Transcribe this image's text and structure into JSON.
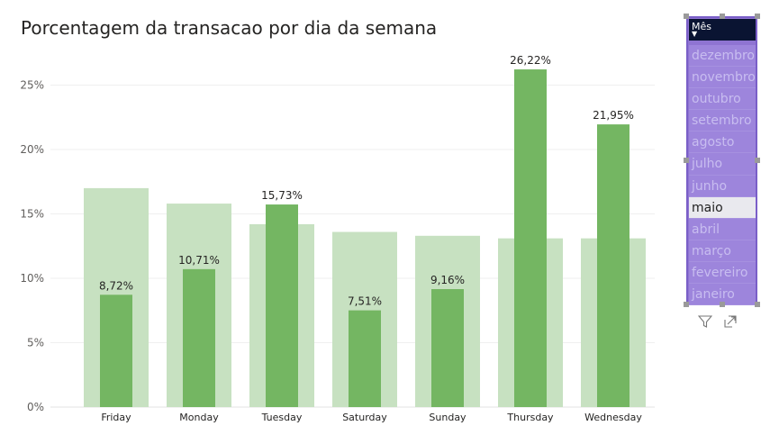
{
  "title": "Porcentagem da transacao por dia da semana",
  "chart_data": {
    "type": "bar",
    "title": "Porcentagem da transacao por dia da semana",
    "categories": [
      "Friday",
      "Monday",
      "Tuesday",
      "Saturday",
      "Sunday",
      "Thursday",
      "Wednesday"
    ],
    "series": [
      {
        "values": [
          17.0,
          15.8,
          14.2,
          13.6,
          13.3,
          13.1,
          13.1
        ],
        "color": "#c7e1c1"
      },
      {
        "values": [
          8.72,
          10.71,
          15.73,
          7.51,
          9.16,
          26.22,
          21.95
        ],
        "color": "#74b662"
      }
    ],
    "data_labels": [
      "8,72%",
      "10,71%",
      "15,73%",
      "7,51%",
      "9,16%",
      "26,22%",
      "21,95%"
    ],
    "y_ticks": [
      "0%",
      "5%",
      "10%",
      "15%",
      "20%",
      "25%"
    ],
    "y_tick_values": [
      0,
      5,
      10,
      15,
      20,
      25
    ],
    "ylim": [
      0,
      28
    ],
    "grid": true
  },
  "slicer": {
    "title": "Mês",
    "caret": "▼",
    "items": [
      "dezembro",
      "novembro",
      "outubro",
      "setembro",
      "agosto",
      "julho",
      "junho",
      "maio",
      "abril",
      "março",
      "fevereiro",
      "janeiro"
    ],
    "selected": "maio"
  },
  "icons": {
    "filter": "filter-icon",
    "focus": "focus-mode-icon"
  }
}
